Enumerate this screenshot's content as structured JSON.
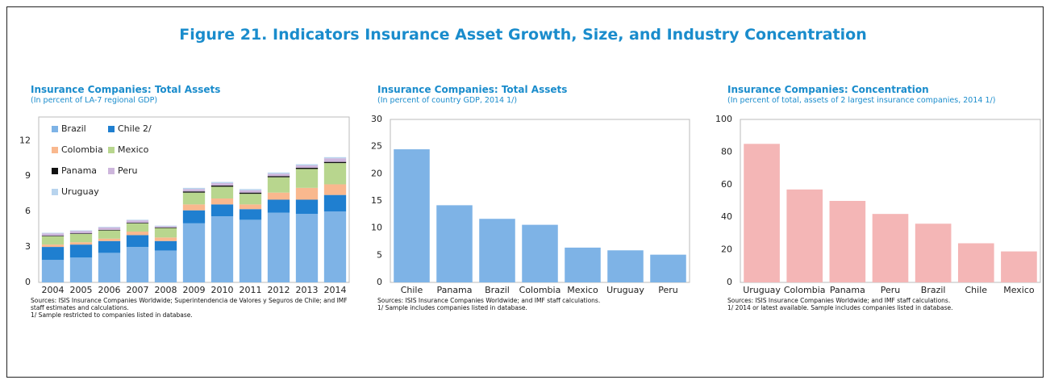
{
  "title": "Figure 21. Indicators Insurance Asset Growth, Size, and Industry Concentration",
  "chart_data": [
    {
      "type": "bar",
      "stacked": true,
      "title": "Insurance Companies: Total Assets",
      "subtitle": "(In percent of LA-7 regional GDP)",
      "notes": [
        "Sources: ISIS Insurance Companies Worldwide; Superintendencia de Valores y Seguros de Chile; and IMF staff estimates and calculations.",
        "1/ Sample restricted to companies listed in database."
      ],
      "categories": [
        "2004",
        "2005",
        "2006",
        "2007",
        "2008",
        "2009",
        "2010",
        "2011",
        "2012",
        "2013",
        "2014"
      ],
      "series": [
        {
          "name": "Brazil",
          "color": "#7eb3e6",
          "values": [
            1.9,
            2.1,
            2.5,
            3.0,
            2.7,
            5.0,
            5.6,
            5.3,
            5.9,
            5.8,
            6.0
          ]
        },
        {
          "name": "Chile 2/",
          "color": "#1f7fd0",
          "values": [
            1.1,
            1.1,
            1.0,
            1.0,
            0.8,
            1.1,
            1.0,
            0.9,
            1.1,
            1.2,
            1.4
          ]
        },
        {
          "name": "Colombia",
          "color": "#f9b88e",
          "values": [
            0.2,
            0.2,
            0.2,
            0.3,
            0.3,
            0.5,
            0.5,
            0.4,
            0.6,
            1.0,
            0.9
          ]
        },
        {
          "name": "Mexico",
          "color": "#b8d68e",
          "values": [
            0.7,
            0.7,
            0.7,
            0.7,
            0.8,
            1.0,
            1.0,
            0.9,
            1.3,
            1.6,
            1.8
          ]
        },
        {
          "name": "Panama",
          "color": "#111111",
          "values": [
            0.05,
            0.05,
            0.05,
            0.05,
            0.05,
            0.1,
            0.1,
            0.1,
            0.1,
            0.1,
            0.1
          ]
        },
        {
          "name": "Peru",
          "color": "#cdb6dc",
          "values": [
            0.2,
            0.2,
            0.2,
            0.2,
            0.1,
            0.2,
            0.2,
            0.2,
            0.2,
            0.2,
            0.3
          ]
        },
        {
          "name": "Uruguay",
          "color": "#b8d4ee",
          "values": [
            0.05,
            0.05,
            0.05,
            0.05,
            0.05,
            0.1,
            0.1,
            0.1,
            0.1,
            0.1,
            0.1
          ]
        }
      ],
      "ylim": [
        0,
        14
      ],
      "yticks": [
        0,
        3,
        6,
        9,
        12
      ],
      "legend": "upper left"
    },
    {
      "type": "bar",
      "title": "Insurance Companies: Total Assets",
      "subtitle": "(In percent of country GDP, 2014 1/)",
      "notes": [
        "Sources: ISIS Insurance Companies Worldwide; and IMF staff calculations.",
        "1/ Sample includes companies listed in database."
      ],
      "categories": [
        "Chile",
        "Panama",
        "Brazil",
        "Colombia",
        "Mexico",
        "Uruguay",
        "Peru"
      ],
      "values": [
        24.5,
        14.2,
        11.7,
        10.6,
        6.4,
        5.9,
        5.1
      ],
      "color": "#7eb3e6",
      "ylim": [
        0,
        30
      ],
      "yticks": [
        0,
        5,
        10,
        15,
        20,
        25,
        30
      ]
    },
    {
      "type": "bar",
      "title": "Insurance Companies: Concentration",
      "subtitle": "(In percent of total, assets of 2 largest insurance companies, 2014 1/)",
      "notes": [
        "Sources: ISIS Insurance Companies Worldwide; and IMF staff calculations.",
        "1/ 2014 or latest available. Sample includes companies listed in database."
      ],
      "categories": [
        "Uruguay",
        "Colombia",
        "Panama",
        "Peru",
        "Brazil",
        "Chile",
        "Mexico"
      ],
      "values": [
        85,
        57,
        50,
        42,
        36,
        24,
        19
      ],
      "color": "#f4b6b6",
      "ylim": [
        0,
        100
      ],
      "yticks": [
        0,
        20,
        40,
        60,
        80,
        100
      ]
    }
  ]
}
